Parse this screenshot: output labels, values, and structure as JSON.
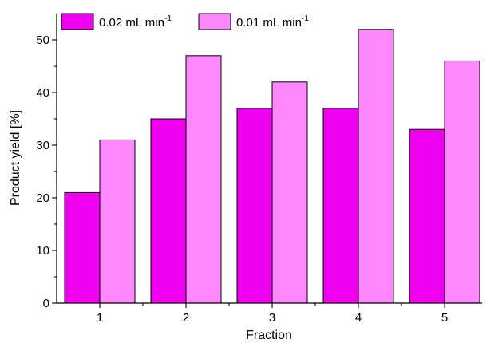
{
  "chart_data": {
    "type": "bar",
    "categories": [
      "1",
      "2",
      "3",
      "4",
      "5"
    ],
    "series": [
      {
        "name_main": "0.02 mL min",
        "name_sup": "-1",
        "color": "#ee00ee",
        "values": [
          21,
          35,
          37,
          37,
          33
        ]
      },
      {
        "name_main": "0.01 mL min",
        "name_sup": "-1",
        "color": "#ff88ff",
        "values": [
          31,
          47,
          42,
          52,
          46
        ]
      }
    ],
    "title": "",
    "xlabel": "Fraction",
    "ylabel": "Product yield [%]",
    "ylim": [
      0,
      55
    ],
    "yticks": [
      "0",
      "10",
      "20",
      "30",
      "40",
      "50"
    ],
    "grid": false,
    "legend_position": "top-left"
  }
}
